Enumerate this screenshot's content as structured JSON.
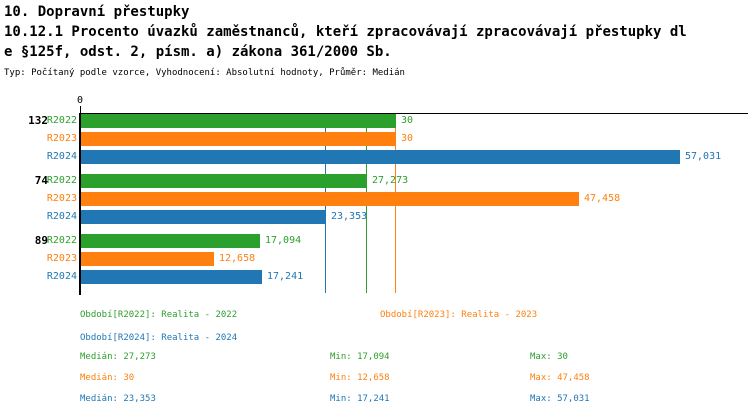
{
  "header": {
    "line1": "10. Dopravní přestupky",
    "line2": "10.12.1 Procento úvazků zaměstnanců, kteří zpracovávají zpracovávají přestupky dl",
    "line3": "e §125f, odst. 2, písm. a) zákona 361/2000 Sb.",
    "meta": "Typ: Počítaný podle vzorce, Vyhodnocení: Absolutní hodnoty, Průměr: Medián"
  },
  "colors": {
    "green": "#2ca02c",
    "orange": "#ff800e",
    "blue": "#2077b4",
    "axis": "#000000"
  },
  "chart_data": {
    "type": "bar",
    "orientation": "horizontal",
    "categories": [
      "132",
      "74",
      "89"
    ],
    "series": [
      {
        "name": "R2022",
        "color": "#2ca02c",
        "values": [
          30,
          27.273,
          17.094
        ],
        "labels": [
          "30",
          "27,273",
          "17,094"
        ]
      },
      {
        "name": "R2023",
        "color": "#ff800e",
        "values": [
          30,
          47.458,
          12.658
        ],
        "labels": [
          "30",
          "47,458",
          "12,658"
        ]
      },
      {
        "name": "R2024",
        "color": "#2077b4",
        "values": [
          57.031,
          23.353,
          17.241
        ],
        "labels": [
          "57,031",
          "23,353",
          "17,241"
        ]
      }
    ],
    "median_lines": [
      {
        "series": "R2022",
        "value": 27.273,
        "color": "#2ca02c"
      },
      {
        "series": "R2023",
        "value": 30,
        "color": "#ff800e"
      },
      {
        "series": "R2024",
        "value": 23.353,
        "color": "#2077b4"
      }
    ],
    "xlim": [
      0,
      63.5
    ],
    "x_tick_labels": [
      "0"
    ],
    "grid": false,
    "legend_position": "bottom"
  },
  "legend": {
    "items": [
      {
        "label": "Období[R2022]: Realita - 2022",
        "color": "#2ca02c"
      },
      {
        "label": "Období[R2023]: Realita - 2023",
        "color": "#ff800e"
      },
      {
        "label": "Období[R2024]: Realita - 2024",
        "color": "#2077b4"
      }
    ]
  },
  "stats": {
    "rows": [
      {
        "color": "#2ca02c",
        "cells": [
          "Medián: 27,273",
          "Min: 17,094",
          "Max: 30"
        ]
      },
      {
        "color": "#ff800e",
        "cells": [
          "Medián: 30",
          "Min: 12,658",
          "Max: 47,458"
        ]
      },
      {
        "color": "#2077b4",
        "cells": [
          "Medián: 23,353",
          "Min: 17,241",
          "Max: 57,031"
        ]
      }
    ]
  }
}
